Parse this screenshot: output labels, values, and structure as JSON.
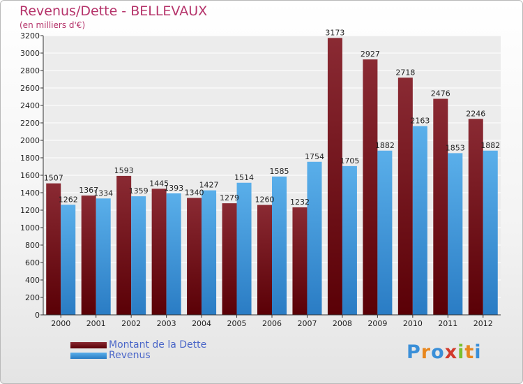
{
  "chart_data": {
    "type": "bar",
    "title": "Revenus/Dette - BELLEVAUX",
    "subtitle": "(en milliers d'€)",
    "categories": [
      "2000",
      "2001",
      "2002",
      "2003",
      "2004",
      "2005",
      "2006",
      "2007",
      "2008",
      "2009",
      "2010",
      "2011",
      "2012"
    ],
    "series": [
      {
        "name": "Montant de la Dette",
        "color": "#7a1a22",
        "values": [
          1507,
          1367,
          1593,
          1445,
          1340,
          1279,
          1260,
          1232,
          3173,
          2927,
          2718,
          2476,
          2246
        ]
      },
      {
        "name": "Revenus",
        "color": "#4fa6e4",
        "values": [
          1262,
          1334,
          1359,
          1393,
          1427,
          1514,
          1585,
          1754,
          1705,
          1882,
          2163,
          1853,
          1882
        ]
      }
    ],
    "ylim": [
      0,
      3200
    ],
    "ytick_step": 200,
    "grid": true,
    "legend": "bottom-left"
  },
  "logo": {
    "letters": [
      "P",
      "r",
      "o",
      "x",
      "i",
      "t",
      "i"
    ],
    "colors": [
      "#3a8fd8",
      "#e8871e",
      "#3a8fd8",
      "#d23a2c",
      "#7bbf2e",
      "#e8871e",
      "#3a8fd8"
    ]
  }
}
